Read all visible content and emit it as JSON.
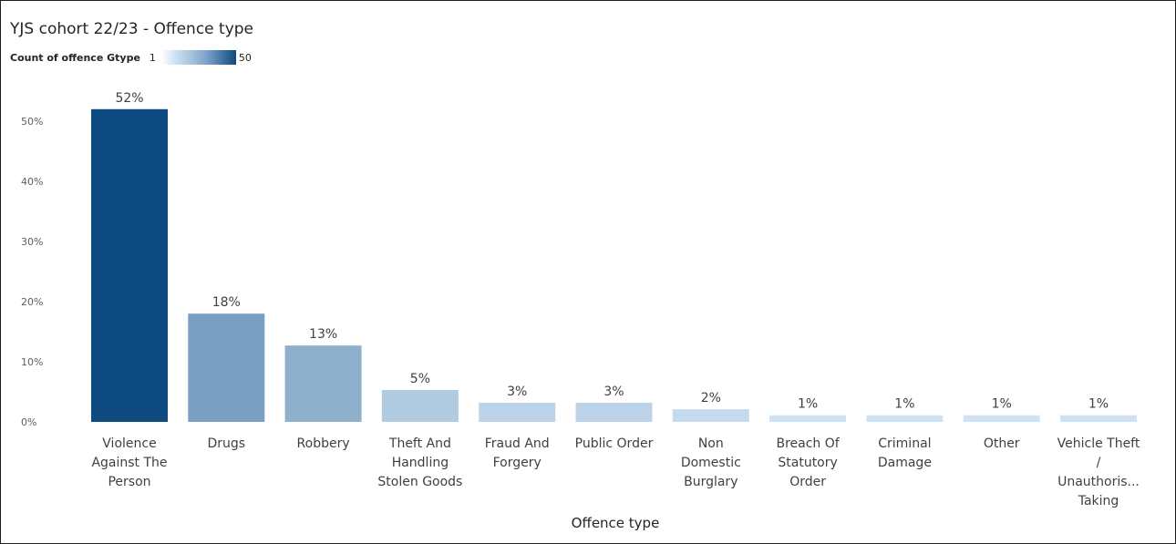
{
  "chart_data": {
    "type": "bar",
    "title": "YJS cohort 22/23 - Offence type",
    "xlabel": "Offence type",
    "ylabel": "",
    "categories": [
      [
        "Violence",
        "Against The",
        "Person"
      ],
      [
        "Drugs"
      ],
      [
        "Robbery"
      ],
      [
        "Theft And",
        "Handling",
        "Stolen Goods"
      ],
      [
        "Fraud And",
        "Forgery"
      ],
      [
        "Public Order"
      ],
      [
        "Non",
        "Domestic",
        "Burglary"
      ],
      [
        "Breach Of",
        "Statutory",
        "Order"
      ],
      [
        "Criminal",
        "Damage"
      ],
      [
        "Other"
      ],
      [
        "Vehicle Theft",
        "/",
        "Unauthoris...",
        "Taking"
      ]
    ],
    "values": [
      52,
      18,
      12.7,
      5.3,
      3.2,
      3.2,
      2.1,
      1.1,
      1.1,
      1.1,
      1.1
    ],
    "data_labels": [
      "52%",
      "18%",
      "13%",
      "5%",
      "3%",
      "3%",
      "2%",
      "1%",
      "1%",
      "1%",
      "1%"
    ],
    "ylim": [
      0,
      55
    ],
    "yticks": [
      0,
      10,
      20,
      30,
      40,
      50
    ],
    "ytick_labels": [
      "0%",
      "10%",
      "20%",
      "30%",
      "40%",
      "50%"
    ],
    "grid": false,
    "legend": {
      "title": "Count of offence Gtype",
      "min_label": "1",
      "max_label": "50",
      "min_value": 1,
      "max_value": 50
    },
    "colors": {
      "low": "#cfe2f3",
      "high": "#0d4a80"
    }
  }
}
